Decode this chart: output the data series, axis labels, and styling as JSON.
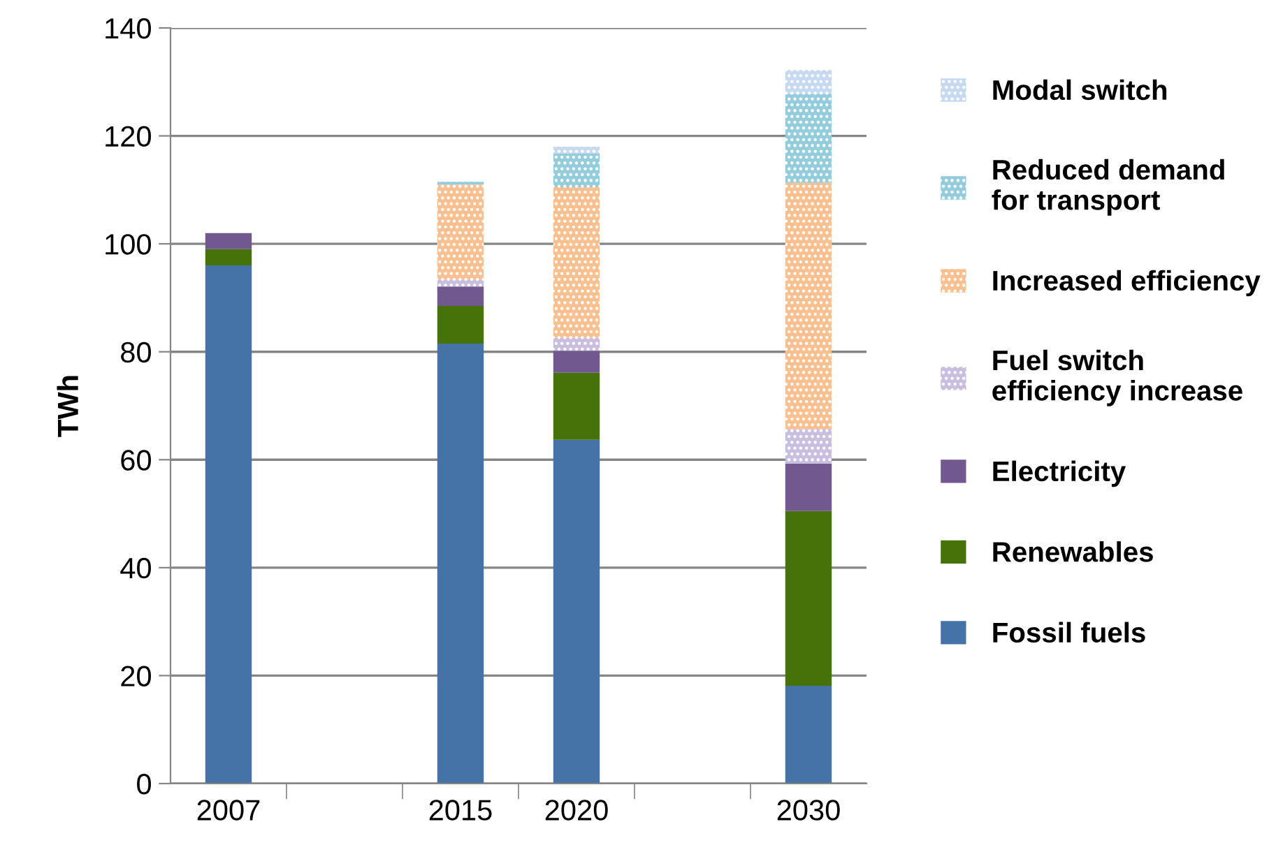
{
  "chart_data": {
    "type": "bar",
    "stacked": true,
    "ylabel": "TWh",
    "categories": [
      "2007",
      null,
      "2015",
      "2020",
      null,
      "2030"
    ],
    "ylim": [
      0,
      140
    ],
    "yticks": [
      0,
      20,
      40,
      60,
      80,
      100,
      120,
      140
    ],
    "grid": "y",
    "legend": "right",
    "series": [
      {
        "name": "Fossil fuels",
        "color": "#4573a7",
        "values": [
          96,
          null,
          81.5,
          63.7,
          null,
          18.1
        ]
      },
      {
        "name": "Renewables",
        "color": "#457209",
        "values": [
          3,
          null,
          7,
          12.4,
          null,
          32.4
        ]
      },
      {
        "name": "Electricity",
        "color": "#71588f",
        "values": [
          3,
          null,
          3.6,
          4.1,
          null,
          8.8
        ]
      },
      {
        "name": "Fuel switch efficiency increase",
        "color": "#c9bde0",
        "values": [
          null,
          null,
          1.3,
          2.4,
          null,
          6.4
        ]
      },
      {
        "name": "Increased efficiency",
        "color": "#fac090",
        "values": [
          null,
          null,
          17.6,
          27.9,
          null,
          45.6
        ]
      },
      {
        "name": "Reduced demand for transport",
        "color": "#93cddd",
        "values": [
          null,
          null,
          0.5,
          6.2,
          null,
          16.5
        ]
      },
      {
        "name": "Modal switch",
        "color": "#c6d9f1",
        "values": [
          null,
          null,
          null,
          1.3,
          null,
          4.4
        ]
      }
    ]
  }
}
